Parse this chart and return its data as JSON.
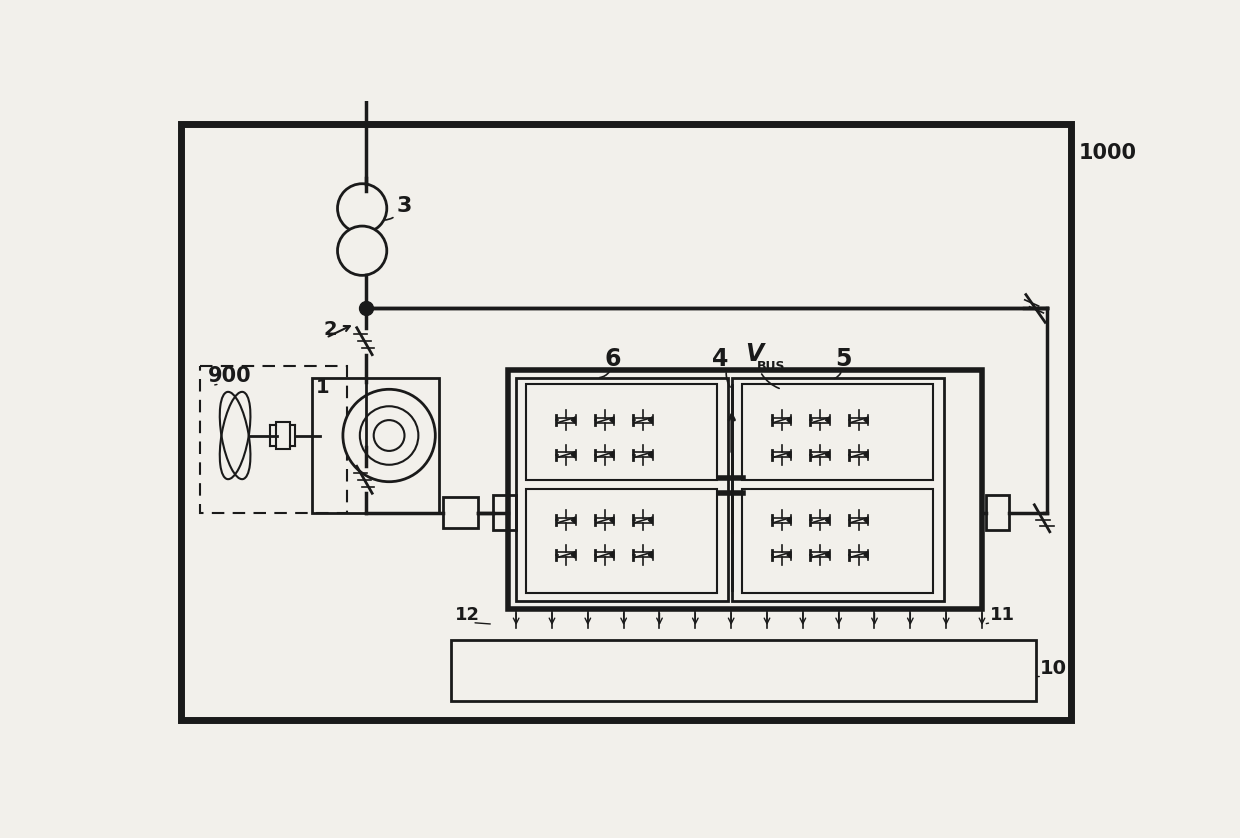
{
  "bg_color": "#f2f0eb",
  "line_color": "#1a1a1a",
  "label_1000": "1000",
  "label_900": "900",
  "label_1": "1",
  "label_2": "2",
  "label_3": "3",
  "label_4": "4",
  "label_5": "5",
  "label_6": "6",
  "label_10": "10",
  "label_11": "11",
  "label_12": "12",
  "label_V": "V",
  "label_BUS": "BUS"
}
